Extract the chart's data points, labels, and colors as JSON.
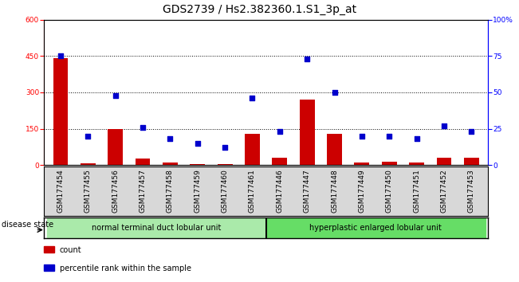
{
  "title": "GDS2739 / Hs2.382360.1.S1_3p_at",
  "samples": [
    "GSM177454",
    "GSM177455",
    "GSM177456",
    "GSM177457",
    "GSM177458",
    "GSM177459",
    "GSM177460",
    "GSM177461",
    "GSM177446",
    "GSM177447",
    "GSM177448",
    "GSM177449",
    "GSM177450",
    "GSM177451",
    "GSM177452",
    "GSM177453"
  ],
  "counts": [
    440,
    8,
    150,
    25,
    10,
    5,
    5,
    130,
    30,
    270,
    130,
    10,
    15,
    10,
    30,
    30
  ],
  "percentiles": [
    75,
    20,
    48,
    26,
    18,
    15,
    12,
    46,
    23,
    73,
    50,
    20,
    20,
    18,
    27,
    23
  ],
  "group1_label": "normal terminal duct lobular unit",
  "group2_label": "hyperplastic enlarged lobular unit",
  "group1_count": 8,
  "group2_count": 8,
  "ylim_left": [
    0,
    600
  ],
  "ylim_right": [
    0,
    100
  ],
  "yticks_left": [
    0,
    150,
    300,
    450,
    600
  ],
  "yticks_right": [
    0,
    25,
    50,
    75,
    100
  ],
  "bar_color": "#cc0000",
  "dot_color": "#0000cc",
  "group1_bg": "#aaeaaa",
  "group2_bg": "#66dd66",
  "disease_state_label": "disease state",
  "legend_count_label": "count",
  "legend_pct_label": "percentile rank within the sample",
  "plot_bg": "#ffffff",
  "dotted_lines": [
    150,
    300,
    450
  ],
  "title_fontsize": 10,
  "tick_fontsize": 6.5,
  "bar_width": 0.55
}
